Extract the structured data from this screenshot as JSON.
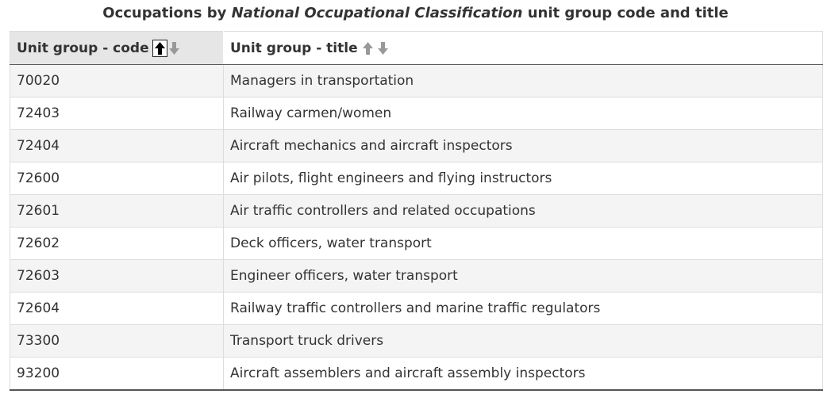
{
  "caption": {
    "prefix": "Occupations by ",
    "emphasis": "National Occupational Classification",
    "suffix": " unit group code and title"
  },
  "columns": [
    {
      "label": "Unit group - code",
      "sort": "ascending"
    },
    {
      "label": "Unit group - title",
      "sort": "none"
    }
  ],
  "sort_icons": {
    "up": "arrow-up-icon",
    "down": "arrow-down-icon",
    "active_color": "#000000",
    "inactive_color": "#999999"
  },
  "rows": [
    {
      "code": "70020",
      "title": "Managers in transportation"
    },
    {
      "code": "72403",
      "title": "Railway carmen/women"
    },
    {
      "code": "72404",
      "title": "Aircraft mechanics and aircraft inspectors"
    },
    {
      "code": "72600",
      "title": "Air pilots, flight engineers and flying instructors"
    },
    {
      "code": "72601",
      "title": "Air traffic controllers and related occupations"
    },
    {
      "code": "72602",
      "title": "Deck officers, water transport"
    },
    {
      "code": "72603",
      "title": "Engineer officers, water transport"
    },
    {
      "code": "72604",
      "title": "Railway traffic controllers and marine traffic regulators"
    },
    {
      "code": "73300",
      "title": "Transport truck drivers"
    },
    {
      "code": "93200",
      "title": "Aircraft assemblers and aircraft assembly inspectors"
    }
  ]
}
